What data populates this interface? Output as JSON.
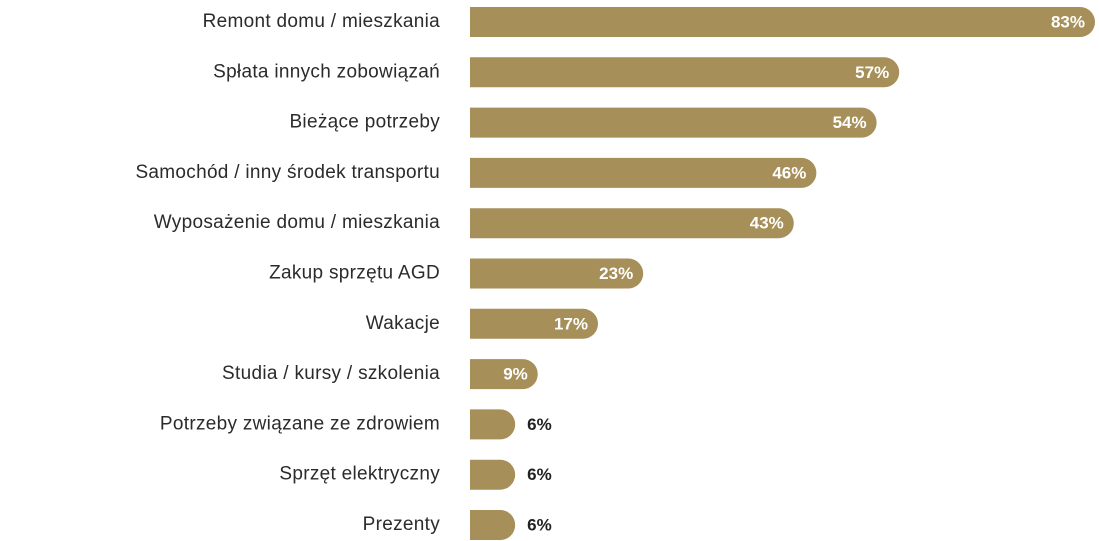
{
  "chart_data": {
    "type": "bar",
    "orientation": "horizontal",
    "categories": [
      "Remont domu / mieszkania",
      "Spłata innych zobowiązań",
      "Bieżące potrzeby",
      "Samochód / inny środek transportu",
      "Wyposażenie domu / mieszkania",
      "Zakup sprzętu AGD",
      "Wakacje",
      "Studia / kursy / szkolenia",
      "Potrzeby związane ze zdrowiem",
      "Sprzęt elektryczny",
      "Prezenty"
    ],
    "values": [
      83,
      57,
      54,
      46,
      43,
      23,
      17,
      9,
      6,
      6,
      6
    ],
    "value_labels": [
      "83%",
      "57%",
      "54%",
      "46%",
      "43%",
      "23%",
      "17%",
      "9%",
      "6%",
      "6%",
      "6%"
    ],
    "color": "#a68f58"
  }
}
